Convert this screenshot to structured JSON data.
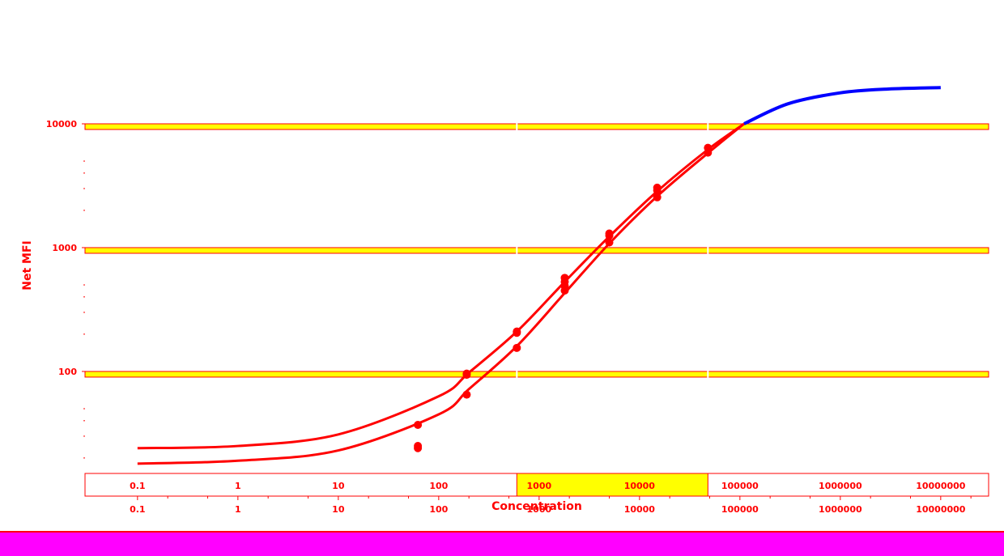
{
  "chart_data": {
    "type": "scatter",
    "xlabel": "Concentration",
    "ylabel": "Net MFI",
    "xscale": "log",
    "yscale": "log",
    "xlim": [
      0.03,
      30000000
    ],
    "ylim": [
      15,
      30000
    ],
    "x_ticks": [
      "0.1",
      "1",
      "10",
      "100",
      "1000",
      "10000",
      "100000",
      "1000000",
      "10000000"
    ],
    "y_ticks": [
      "100",
      "1000",
      "10000"
    ],
    "grid": false,
    "colors": {
      "primary": "#ff0000",
      "secondary": "#0000ff",
      "band": "#ffff00"
    },
    "highlight_bands": [
      {
        "axis": "y",
        "from": 90,
        "to": 100
      },
      {
        "axis": "y",
        "from": 900,
        "to": 1000
      },
      {
        "axis": "y",
        "from": 9000,
        "to": 10000
      },
      {
        "axis": "x",
        "from": 600,
        "to": 48000
      }
    ],
    "series": [
      {
        "kind": "curve",
        "color": "#ff0000",
        "x": [
          0.1,
          1,
          10,
          100,
          200,
          600,
          1800,
          5000,
          15000,
          48000,
          110000
        ],
        "y": [
          24,
          25,
          31,
          63,
          98,
          210,
          530,
          1230,
          2850,
          6200,
          10000
        ]
      },
      {
        "kind": "curve",
        "color": "#ff0000",
        "x": [
          0.1,
          1,
          10,
          100,
          200,
          600,
          1800,
          5000,
          15000,
          48000,
          110000
        ],
        "y": [
          18,
          19,
          23,
          45,
          72,
          160,
          430,
          1080,
          2600,
          5800,
          10000
        ]
      },
      {
        "kind": "curve",
        "color": "#0000ff",
        "x": [
          110000,
          300000,
          1000000,
          3000000,
          10000000
        ],
        "y": [
          10000,
          14500,
          17800,
          19100,
          19600
        ]
      },
      {
        "kind": "points",
        "color": "#ff0000",
        "x": [
          62,
          62,
          62,
          190,
          190,
          190,
          600,
          600,
          600,
          1800,
          1800,
          1800,
          1800,
          5000,
          5000,
          5000,
          15000,
          15000,
          15000,
          48000,
          48000
        ],
        "y": [
          37,
          25,
          24,
          96,
          94,
          65,
          210,
          205,
          155,
          570,
          530,
          490,
          450,
          1300,
          1250,
          1100,
          3050,
          2900,
          2550,
          6400,
          5850
        ]
      }
    ]
  }
}
